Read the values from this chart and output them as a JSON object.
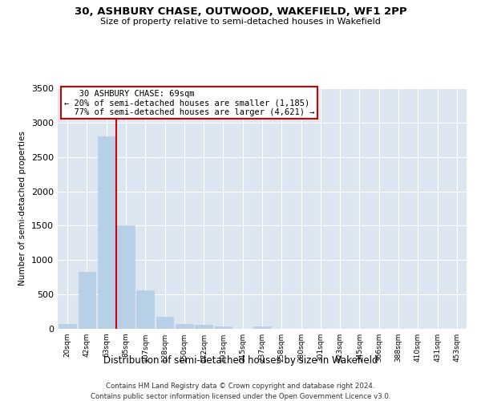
{
  "title1": "30, ASHBURY CHASE, OUTWOOD, WAKEFIELD, WF1 2PP",
  "title2": "Size of property relative to semi-detached houses in Wakefield",
  "xlabel": "Distribution of semi-detached houses by size in Wakefield",
  "ylabel": "Number of semi-detached properties",
  "footer1": "Contains HM Land Registry data © Crown copyright and database right 2024.",
  "footer2": "Contains public sector information licensed under the Open Government Licence v3.0.",
  "categories": [
    "20sqm",
    "42sqm",
    "63sqm",
    "85sqm",
    "107sqm",
    "128sqm",
    "150sqm",
    "172sqm",
    "193sqm",
    "215sqm",
    "237sqm",
    "258sqm",
    "280sqm",
    "301sqm",
    "323sqm",
    "345sqm",
    "366sqm",
    "388sqm",
    "410sqm",
    "431sqm",
    "453sqm"
  ],
  "values": [
    65,
    830,
    2800,
    1500,
    560,
    175,
    65,
    55,
    40,
    0,
    30,
    0,
    0,
    0,
    0,
    0,
    0,
    0,
    0,
    0,
    0
  ],
  "bar_color": "#b8cfe8",
  "vline_index": 2,
  "property_label": "30 ASHBURY CHASE: 69sqm",
  "pct_smaller": "20%",
  "n_smaller": "1,185",
  "pct_larger": "77%",
  "n_larger": "4,621",
  "annotation_box_color": "#cc0000",
  "vline_color": "#cc0000",
  "ylim": [
    0,
    3500
  ],
  "yticks": [
    0,
    500,
    1000,
    1500,
    2000,
    2500,
    3000,
    3500
  ],
  "plot_bg_color": "#dce6f1"
}
